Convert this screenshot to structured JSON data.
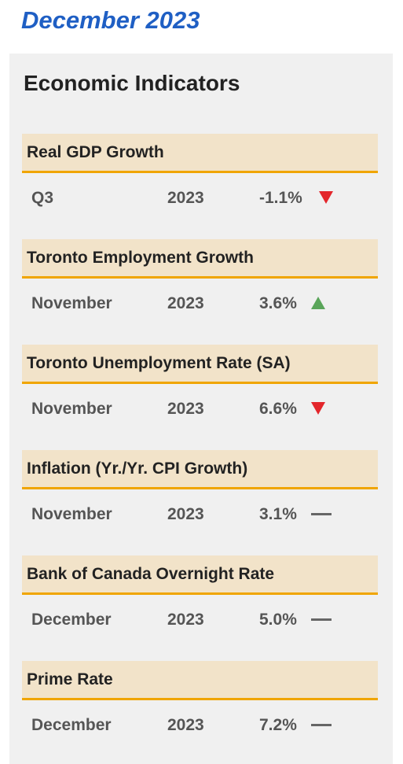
{
  "header": {
    "title": "December 2023"
  },
  "panel": {
    "title": "Economic Indicators",
    "indicators": [
      {
        "name": "Real GDP Growth",
        "period": "Q3",
        "year": "2023",
        "value": "-1.1%",
        "trend": "down"
      },
      {
        "name": "Toronto Employment Growth",
        "period": "November",
        "year": "2023",
        "value": "3.6%",
        "trend": "up"
      },
      {
        "name": "Toronto Unemployment Rate (SA)",
        "period": "November",
        "year": "2023",
        "value": "6.6%",
        "trend": "down"
      },
      {
        "name": "Inflation (Yr./Yr. CPI Growth)",
        "period": "November",
        "year": "2023",
        "value": "3.1%",
        "trend": "flat"
      },
      {
        "name": "Bank of Canada Overnight Rate",
        "period": "December",
        "year": "2023",
        "value": "5.0%",
        "trend": "flat"
      },
      {
        "name": "Prime Rate",
        "period": "December",
        "year": "2023",
        "value": "7.2%",
        "trend": "flat"
      }
    ]
  }
}
